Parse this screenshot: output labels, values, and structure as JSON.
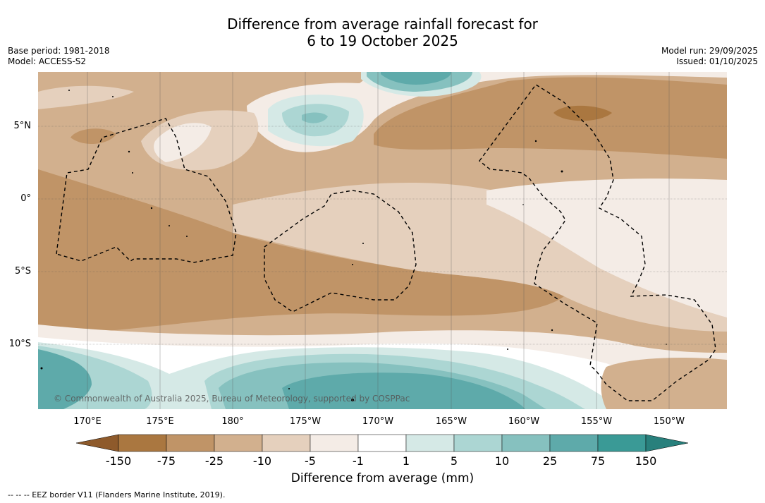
{
  "title_line1": "Difference from average rainfall forecast for",
  "title_line2": "6 to 19 October 2025",
  "base_period": "Base period: 1981-2018",
  "model": "Model: ACCESS-S2",
  "model_run": "Model run: 29/09/2025",
  "issued": "Issued: 01/10/2025",
  "copyright": "© Commonwealth of Australia 2025, Bureau of Meteorology, supported by COSPPac",
  "latitudes": [
    "5°N",
    "0°",
    "5°S",
    "10°S"
  ],
  "longitudes": [
    "170°E",
    "175°E",
    "180°",
    "175°W",
    "170°W",
    "165°W",
    "160°W",
    "155°W",
    "150°W"
  ],
  "colorbar": {
    "ticks": [
      "-150",
      "-75",
      "-25",
      "-10",
      "-5",
      "-1",
      "1",
      "5",
      "10",
      "25",
      "75",
      "150"
    ],
    "title": "Difference from average (mm)",
    "colors": {
      "lt_-150": "#8e5a2b",
      "-150_-75": "#aa7740",
      "-75_-25": "#c09467",
      "-25_-10": "#d2b08e",
      "-10_-5": "#e5d0bd",
      "-5_-1": "#f4ece6",
      "-1_1": "#ffffff",
      "1_5": "#d5e9e6",
      "5_10": "#acd6d3",
      "10_25": "#86c1bf",
      "25_75": "#5eaaaa",
      "75_150": "#3a9a96",
      "gt_150": "#28807c"
    }
  },
  "legend_note": "--  --  -- EEZ border V11 (Flanders Marine Institute, 2019)."
}
